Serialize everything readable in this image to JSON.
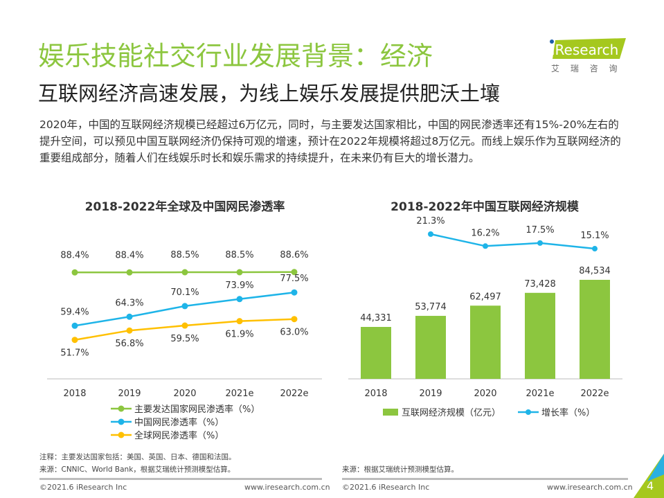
{
  "header": {
    "title": "娱乐技能社交行业发展背景：经济",
    "subtitle": "互联网经济高速发展，为线上娱乐发展提供肥沃土壤",
    "logo_text": "iResearch",
    "logo_sub": "艾 瑞 咨 询"
  },
  "body": "2020年，中国的互联网经济规模已经超过6万亿元，同时，与主要发达国家相比，中国的网民渗透率还有15%-20%左右的提升空间，可以预见中国互联网经济仍保持可观的增速，预计在2022年规模将超过8万亿元。而线上娱乐作为互联网经济的重要组成部分，随着人们在线娱乐时长和娱乐需求的持续提升，在未来仍有巨大的增长潜力。",
  "chart_data": [
    {
      "type": "line",
      "title": "2018-2022年全球及中国网民渗透率",
      "categories": [
        "2018",
        "2019",
        "2020",
        "2021e",
        "2022e"
      ],
      "series": [
        {
          "name": "主要发达国家网民渗透率（%）",
          "values": [
            88.4,
            88.4,
            88.5,
            88.5,
            88.6
          ],
          "color": "#8cc63f"
        },
        {
          "name": "中国网民渗透率（%）",
          "values": [
            59.4,
            64.3,
            70.1,
            73.9,
            77.5
          ],
          "color": "#1eb4e8"
        },
        {
          "name": "全球网民渗透率（%）",
          "values": [
            51.7,
            56.8,
            59.5,
            61.9,
            63.0
          ],
          "color": "#ffc000"
        }
      ],
      "legend": "bottom",
      "grid": false
    },
    {
      "type": "bar",
      "title": "2018-2022年中国互联网经济规模",
      "categories": [
        "2018",
        "2019",
        "2020",
        "2021e",
        "2022e"
      ],
      "series": [
        {
          "name": "互联网经济规模（亿元）",
          "values": [
            44331,
            53774,
            62497,
            73428,
            84534
          ],
          "color": "#8cc63f",
          "labels": [
            "44,331",
            "53,774",
            "62,497",
            "73,428",
            "84,534"
          ]
        },
        {
          "name": "增长率（%）",
          "type": "line",
          "values": [
            null,
            21.3,
            16.2,
            17.5,
            15.1
          ],
          "color": "#1eb4e8"
        }
      ],
      "legend": "bottom",
      "grid": false
    }
  ],
  "notes": {
    "left1": "注释：主要发达国家包括：美国、英国、日本、德国和法国。",
    "left2": "来源：CNNIC、World Bank，根据艾瑞统计预测模型估算。",
    "right": "来源：根据艾瑞统计预测模型估算。"
  },
  "footer": {
    "copyright": "©2021.6 iResearch Inc",
    "url": "www.iresearch.com.cn",
    "page": "4"
  }
}
